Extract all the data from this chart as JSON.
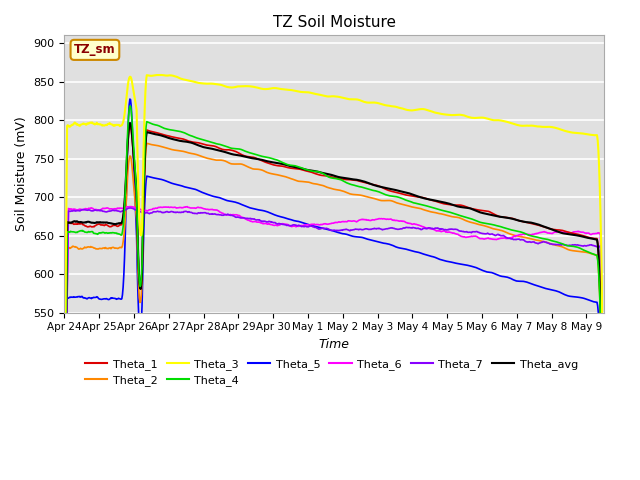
{
  "title": "TZ Soil Moisture",
  "xlabel": "Time",
  "ylabel": "Soil Moisture (mV)",
  "ylim": [
    550,
    910
  ],
  "xlim": [
    0,
    15.5
  ],
  "bg_color": "#e0e0e0",
  "legend_box_text": "TZ_sm",
  "series": {
    "Theta_1": {
      "color": "#dd0000",
      "lw": 1.2
    },
    "Theta_2": {
      "color": "#ff8800",
      "lw": 1.2
    },
    "Theta_3": {
      "color": "#ffff00",
      "lw": 1.5
    },
    "Theta_4": {
      "color": "#00dd00",
      "lw": 1.2
    },
    "Theta_5": {
      "color": "#0000ff",
      "lw": 1.2
    },
    "Theta_6": {
      "color": "#ff00ff",
      "lw": 1.2
    },
    "Theta_7": {
      "color": "#8800ff",
      "lw": 1.2
    },
    "Theta_avg": {
      "color": "#000000",
      "lw": 1.5
    }
  },
  "xtick_labels": [
    "Apr 24",
    "Apr 25",
    "Apr 26",
    "Apr 27",
    "Apr 28",
    "Apr 29",
    "Apr 30",
    "May 1",
    "May 2",
    "May 3",
    "May 4",
    "May 5",
    "May 6",
    "May 7",
    "May 8",
    "May 9"
  ],
  "ytick_labels": [
    550,
    600,
    650,
    700,
    750,
    800,
    850,
    900
  ]
}
